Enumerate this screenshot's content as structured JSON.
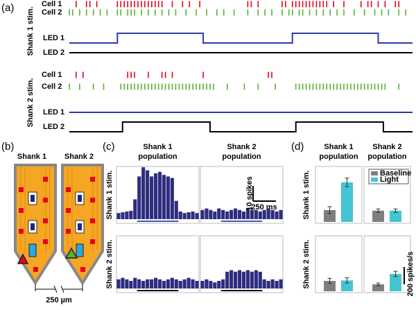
{
  "panel_a": {
    "label": "(a)",
    "groups": [
      {
        "title": "Shank 1 stim.",
        "cells": [
          {
            "name": "Cell 1",
            "color": "#e3001b",
            "spikes": [
              2,
              5,
              6,
              8,
              14,
              15,
              16,
              17,
              18,
              19,
              20,
              21,
              22,
              23,
              24,
              25,
              26,
              27,
              30,
              33,
              35,
              38,
              52,
              53,
              55,
              62,
              63,
              65,
              66,
              67,
              68,
              69,
              70,
              71,
              72,
              73,
              74,
              75,
              77,
              80,
              85,
              87,
              88,
              90,
              92,
              95,
              96
            ]
          },
          {
            "name": "Cell 2",
            "color": "#58b031",
            "spikes": [
              0,
              1,
              3,
              5,
              7,
              9,
              11,
              14,
              15,
              17,
              18,
              19,
              21,
              23,
              25,
              27,
              29,
              31,
              34,
              37,
              40,
              43,
              45,
              48,
              52,
              55,
              57,
              59,
              62,
              64,
              65,
              67,
              68,
              70,
              72,
              74,
              76,
              78,
              80,
              83,
              86,
              89,
              91,
              93,
              96,
              98
            ]
          }
        ],
        "leds": [
          {
            "name": "LED 1",
            "color": "#2a3aa8",
            "on": [
              [
                14,
                39
              ],
              [
                65,
                90
              ]
            ]
          },
          {
            "name": "LED 2",
            "color": "#000000",
            "on": []
          }
        ]
      },
      {
        "title": "Shank 2 stim.",
        "cells": [
          {
            "name": "Cell 1",
            "color": "#e3001b",
            "spikes": [
              2,
              4,
              17,
              18,
              19,
              23,
              27,
              28,
              30,
              39,
              58,
              59
            ]
          },
          {
            "name": "Cell 2",
            "color": "#58b031",
            "spikes": [
              0,
              3,
              7,
              10,
              15,
              16,
              17,
              18,
              19,
              20,
              21,
              22,
              23,
              24,
              25,
              26,
              27,
              28,
              29,
              30,
              31,
              32,
              33,
              34,
              35,
              36,
              37,
              38,
              39,
              40,
              41,
              42,
              46,
              51,
              55,
              60,
              66,
              67,
              68,
              69,
              70,
              71,
              72,
              73,
              74,
              75,
              76,
              77,
              78,
              79,
              80,
              81,
              82,
              83,
              84,
              85,
              86,
              87,
              88,
              89,
              90,
              91,
              92,
              96
            ]
          }
        ],
        "leds": [
          {
            "name": "LED 1",
            "color": "#2a3aa8",
            "on": []
          },
          {
            "name": "LED 2",
            "color": "#000000",
            "on": [
              [
                15.5,
                41
              ],
              [
                66,
                91.5
              ]
            ]
          }
        ]
      }
    ]
  },
  "panel_b": {
    "label": "(b)",
    "shanks": [
      "Shank 1",
      "Shank 2"
    ],
    "scale": "250 µm"
  },
  "panel_c": {
    "label": "(c)",
    "columns": [
      [
        "Shank 1",
        "population"
      ],
      [
        "Shank 2",
        "population"
      ]
    ],
    "rows": [
      "Shank 1 stim.",
      "Shank 2 stim."
    ],
    "bar_color": "#2e2d7f",
    "stim_colors": [
      "#3f55b5",
      "#000000"
    ],
    "histograms": [
      [
        [
          4,
          4.5,
          5,
          5.5,
          13,
          28,
          34,
          32,
          28,
          30,
          31,
          29,
          28,
          27,
          12,
          5,
          4,
          4.5,
          5,
          4
        ],
        [
          6,
          7,
          6,
          5,
          7,
          6,
          5,
          6,
          7,
          6,
          5,
          7,
          6,
          6,
          5,
          6,
          7,
          6,
          5,
          6
        ]
      ],
      [
        [
          6,
          7,
          6,
          5,
          7,
          6,
          5,
          6,
          6,
          7,
          6,
          5,
          6,
          7,
          6,
          5,
          6,
          7,
          6,
          5
        ],
        [
          5,
          6,
          5,
          4,
          5,
          6,
          11,
          12,
          11,
          12,
          11,
          12,
          11,
          12,
          11,
          6,
          5,
          6,
          5,
          6
        ]
      ]
    ],
    "scale_y": {
      "value": 10,
      "label": "10 spikes"
    },
    "scale_x": "250 ms"
  },
  "panel_d": {
    "label": "(d)",
    "columns": [
      [
        "Shank 1",
        "population"
      ],
      [
        "Shank 2",
        "population"
      ]
    ],
    "rows": [
      "Shank 1 stim.",
      "Shank 2 stim."
    ],
    "legend": [
      {
        "name": "Baseline",
        "color": "#7f7f7f"
      },
      {
        "name": "Light",
        "color": "#45c4d2"
      }
    ],
    "values": [
      [
        [
          136,
          456
        ],
        [
          130,
          130
        ]
      ],
      [
        [
          120,
          125
        ],
        [
          80,
          200
        ]
      ]
    ],
    "errors": [
      [
        [
          40,
          50
        ],
        [
          20,
          20
        ]
      ],
      [
        [
          30,
          30
        ],
        [
          15,
          30
        ]
      ]
    ],
    "scale": {
      "value": 200,
      "label": "200 spikes/s"
    }
  }
}
